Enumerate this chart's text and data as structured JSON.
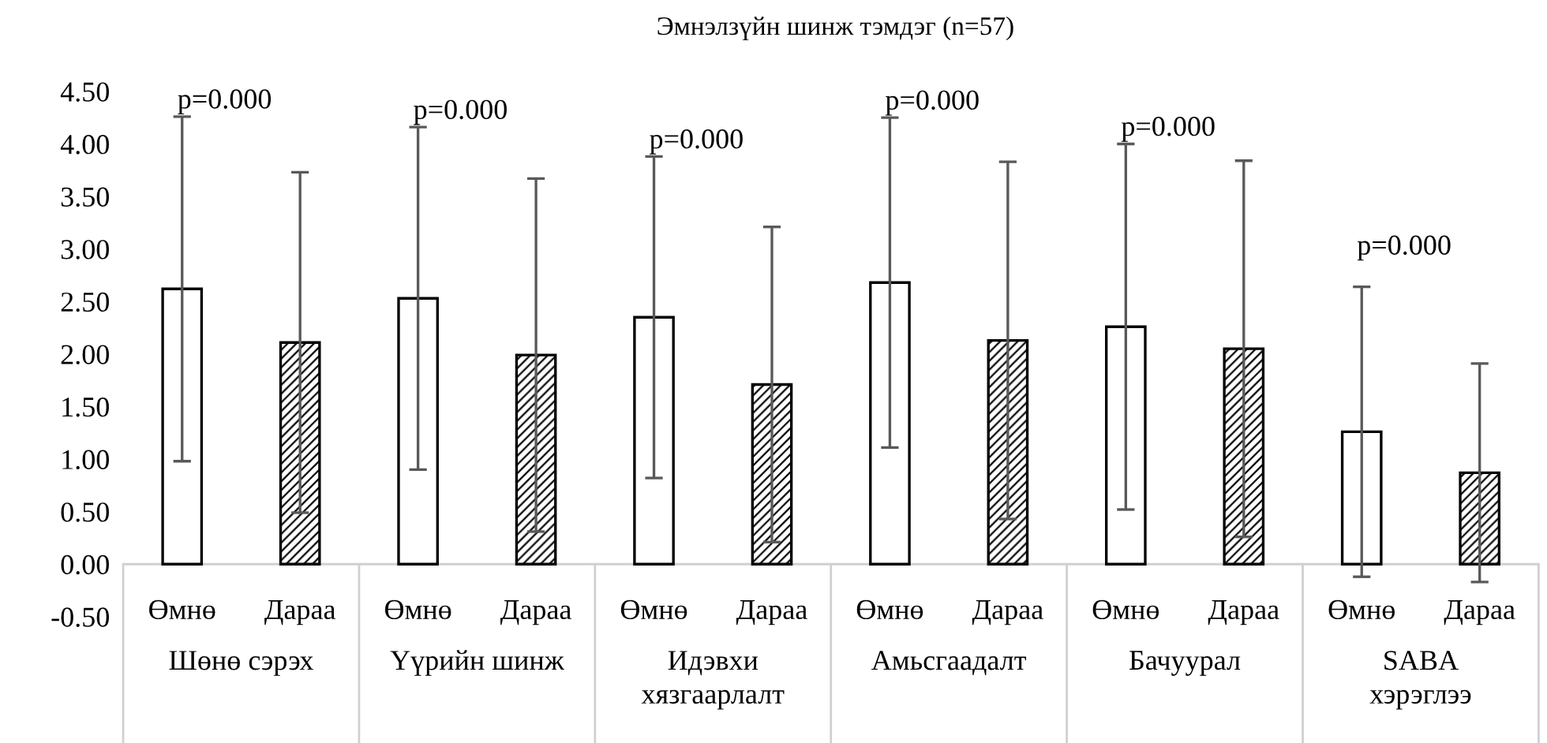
{
  "chart_data": {
    "type": "bar",
    "title": "Эмнэлзүйн шинж тэмдэг (n=57)",
    "categories": [
      "Шөнө сэрэх",
      "Үүрийн шинж",
      "Идэвхи\nхязгаарлалт",
      "Амьсгаадалт",
      "Бачуурал",
      "SABA\nхэрэглээ"
    ],
    "series": [
      {
        "name": "Өмнө",
        "color": "#ffffff",
        "values": [
          2.62,
          2.53,
          2.35,
          2.68,
          2.26,
          1.26
        ],
        "errors": [
          1.64,
          1.63,
          1.53,
          1.57,
          1.74,
          1.38
        ]
      },
      {
        "name": "Дараа",
        "color": "#000000",
        "values": [
          2.11,
          1.99,
          1.71,
          2.13,
          2.05,
          0.87
        ],
        "errors": [
          1.62,
          1.68,
          1.5,
          1.7,
          1.79,
          1.04
        ]
      }
    ],
    "ylim": [
      -0.5,
      4.5
    ],
    "yticks": [
      {
        "value": -0.5,
        "label": "-0.50"
      },
      {
        "value": 0,
        "label": "0.00"
      },
      {
        "value": 0.5,
        "label": "0.50"
      },
      {
        "value": 1,
        "label": "1.00"
      },
      {
        "value": 1.5,
        "label": "1.50"
      },
      {
        "value": 2,
        "label": "2.00"
      },
      {
        "value": 2.5,
        "label": "2.50"
      },
      {
        "value": 3,
        "label": "3.00"
      },
      {
        "value": 3.5,
        "label": "3.50"
      },
      {
        "value": 4,
        "label": "4.00"
      },
      {
        "value": 4.5,
        "label": "4.50"
      }
    ],
    "annotations": [
      "p=0.000",
      "p=0.000",
      "p=0.000",
      "p=0.000",
      "p=0.000",
      "p=0.000"
    ],
    "ref_lines": [
      {
        "axis": "y",
        "value": 0,
        "color": "#d0d0d0"
      }
    ],
    "grid": false,
    "legend": false
  }
}
